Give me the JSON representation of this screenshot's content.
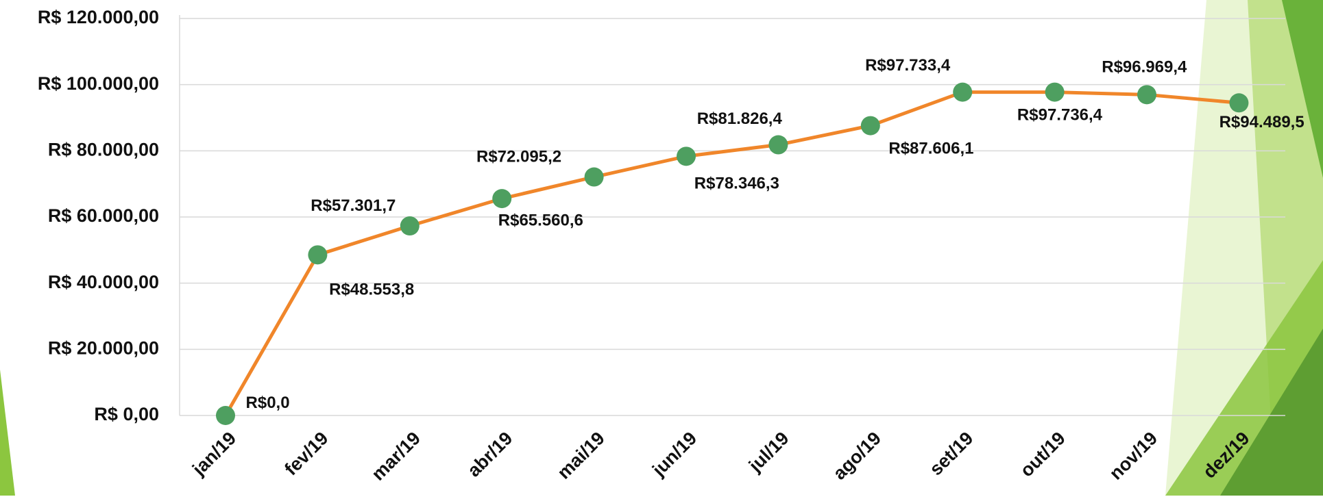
{
  "chart_data": {
    "type": "line",
    "categories": [
      "jan/19",
      "fev/19",
      "mar/19",
      "abr/19",
      "mai/19",
      "jun/19",
      "jul/19",
      "ago/19",
      "set/19",
      "out/19",
      "nov/19",
      "dez/19"
    ],
    "series": [
      {
        "line_color": "#f0862a",
        "color": "#4e9f60",
        "values": [
          0,
          48553.8,
          57301.7,
          65560.6,
          72095.2,
          78346.3,
          81826.4,
          87606.1,
          97733.4,
          97736.4,
          96969.4,
          94489.5
        ],
        "value_labels": [
          "R$0,0",
          "R$48.553,8",
          "R$57.301,7",
          "R$65.560,6",
          "R$72.095,2",
          "R$78.346,3",
          "R$81.826,4",
          "R$87.606,1",
          "R$97.733,4",
          "R$97.736,4",
          "R$96.969,4",
          "R$94.489,5"
        ]
      }
    ],
    "ylim": [
      0,
      120000
    ],
    "yticks": [
      {
        "value": 0,
        "label": "R$ 0,00"
      },
      {
        "value": 20000,
        "label": "R$ 20.000,00"
      },
      {
        "value": 40000,
        "label": "R$ 40.000,00"
      },
      {
        "value": 60000,
        "label": "R$ 60.000,00"
      },
      {
        "value": 80000,
        "label": "R$ 80.000,00"
      },
      {
        "value": 100000,
        "label": "R$ 100.000,00"
      },
      {
        "value": 120000,
        "label": "R$ 120.000,00"
      }
    ],
    "grid": true
  }
}
